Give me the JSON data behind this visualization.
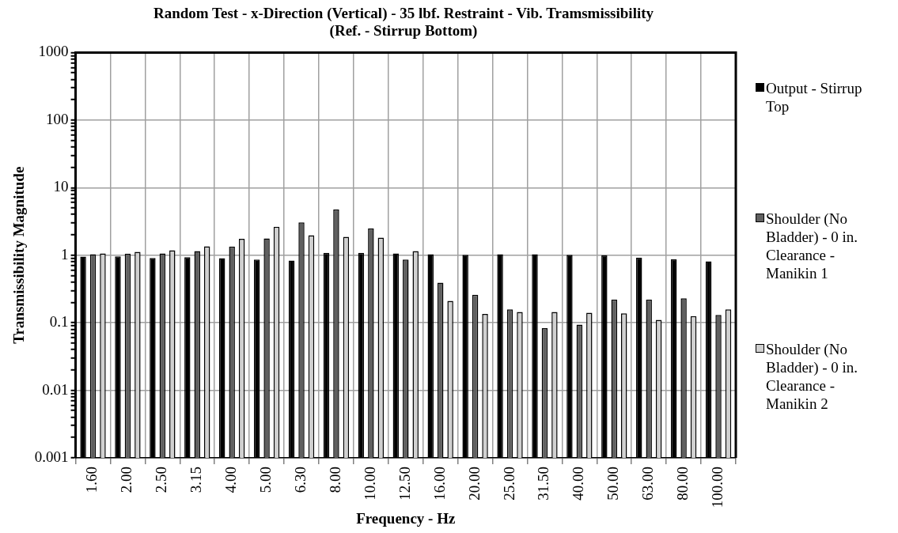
{
  "chart_data": {
    "type": "bar",
    "title": "Random Test - x-Direction (Vertical) - 35 lbf. Restraint - Vib. Tramsmissibility (Ref. - Stirrup Bottom)",
    "xlabel": "Frequency - Hz",
    "ylabel": "Transmissibility Magnitude",
    "categories": [
      "1.60",
      "2.00",
      "2.50",
      "3.15",
      "4.00",
      "5.00",
      "6.30",
      "8.00",
      "10.00",
      "12.50",
      "16.00",
      "20.00",
      "25.00",
      "31.50",
      "40.00",
      "50.00",
      "63.00",
      "80.00",
      "100.00"
    ],
    "series": [
      {
        "name": "Output - Stirrup Top",
        "color": "#000000",
        "values": [
          0.95,
          0.96,
          0.91,
          0.93,
          0.9,
          0.86,
          0.83,
          1.08,
          1.08,
          1.06,
          1.03,
          1.01,
          1.03,
          1.03,
          1.01,
          1.0,
          0.92,
          0.87,
          0.81
        ]
      },
      {
        "name": "Shoulder (No Bladder) - 0 in. Clearance - Manikin 1",
        "color": "#606060",
        "values": [
          1.03,
          1.05,
          1.06,
          1.15,
          1.34,
          1.77,
          3.05,
          4.75,
          2.49,
          0.86,
          0.39,
          0.26,
          0.157,
          0.083,
          0.094,
          0.22,
          0.22,
          0.23,
          0.13
        ]
      },
      {
        "name": "Shoulder (No Bladder) - 0 in. Clearance - Manikin 2",
        "color": "#d0d0d0",
        "values": [
          1.06,
          1.12,
          1.18,
          1.35,
          1.75,
          2.64,
          1.97,
          1.87,
          1.82,
          1.15,
          0.21,
          0.135,
          0.144,
          0.144,
          0.14,
          0.138,
          0.11,
          0.125,
          0.157
        ]
      }
    ],
    "log": "y",
    "ylim": [
      0.001,
      1000
    ],
    "yticks": [
      0.001,
      {
        "value": 0.002,
        "label": null
      },
      {
        "value": 0.003,
        "label": null
      },
      {
        "value": 0.004,
        "label": null
      },
      {
        "value": 0.005,
        "label": null
      },
      {
        "value": 0.006,
        "label": null
      },
      {
        "value": 0.007,
        "label": null
      },
      {
        "value": 0.008,
        "label": null
      },
      {
        "value": 0.009,
        "label": null
      },
      0.01,
      {
        "value": 0.02,
        "label": null
      },
      {
        "value": 0.03,
        "label": null
      },
      {
        "value": 0.04,
        "label": null
      },
      {
        "value": 0.05,
        "label": null
      },
      {
        "value": 0.06,
        "label": null
      },
      {
        "value": 0.07,
        "label": null
      },
      {
        "value": 0.08,
        "label": null
      },
      {
        "value": 0.09,
        "label": null
      },
      0.1,
      {
        "value": 0.2,
        "label": null
      },
      {
        "value": 0.3,
        "label": null
      },
      {
        "value": 0.4,
        "label": null
      },
      {
        "value": 0.5,
        "label": null
      },
      {
        "value": 0.6,
        "label": null
      },
      {
        "value": 0.7,
        "label": null
      },
      {
        "value": 0.8,
        "label": null
      },
      {
        "value": 0.9,
        "label": null
      },
      1,
      {
        "value": 2,
        "label": null
      },
      {
        "value": 3,
        "label": null
      },
      {
        "value": 4,
        "label": null
      },
      {
        "value": 5,
        "label": null
      },
      {
        "value": 6,
        "label": null
      },
      {
        "value": 7,
        "label": null
      },
      {
        "value": 8,
        "label": null
      },
      {
        "value": 9,
        "label": null
      },
      10,
      {
        "value": 20,
        "label": null
      },
      {
        "value": 30,
        "label": null
      },
      {
        "value": 40,
        "label": null
      },
      {
        "value": 50,
        "label": null
      },
      {
        "value": 60,
        "label": null
      },
      {
        "value": 70,
        "label": null
      },
      {
        "value": 80,
        "label": null
      },
      {
        "value": 90,
        "label": null
      },
      100,
      {
        "value": 200,
        "label": null
      },
      {
        "value": 300,
        "label": null
      },
      {
        "value": 400,
        "label": null
      },
      {
        "value": 500,
        "label": null
      },
      {
        "value": 600,
        "label": null
      },
      {
        "value": 700,
        "label": null
      },
      {
        "value": 800,
        "label": null
      },
      {
        "value": 900,
        "label": null
      },
      1000
    ],
    "grid": true,
    "legend": "right"
  }
}
